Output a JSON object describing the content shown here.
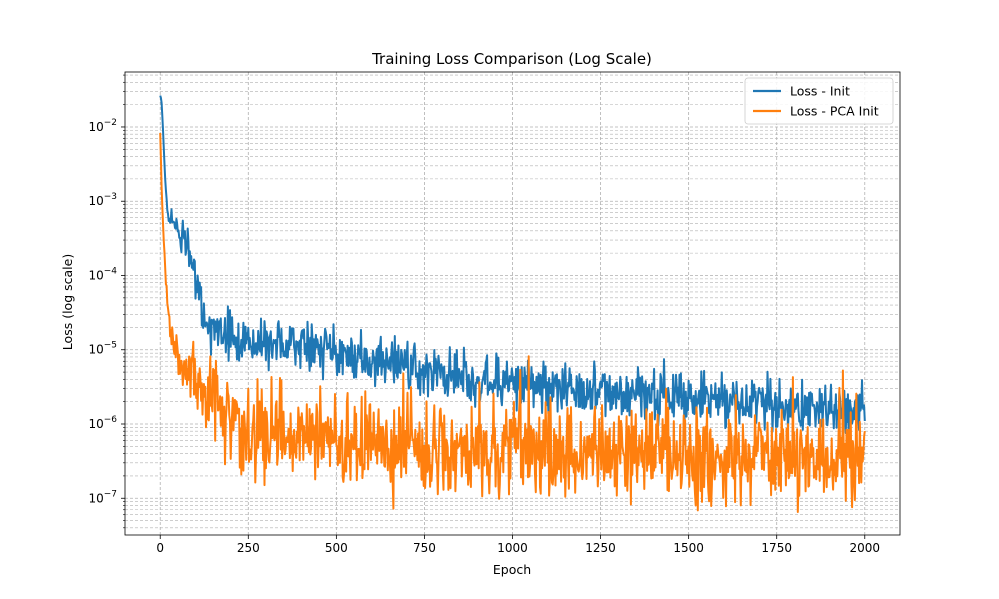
{
  "chart_data": {
    "type": "line",
    "title": "Training Loss Comparison (Log Scale)",
    "xlabel": "Epoch",
    "ylabel": "Loss (log scale)",
    "xlim": [
      -100,
      2100
    ],
    "ylim": [
      3.2e-08,
      0.055
    ],
    "yscale": "log",
    "x_ticks": [
      0,
      250,
      500,
      750,
      1000,
      1250,
      1500,
      1750,
      2000
    ],
    "y_ticks": [
      {
        "value": 1e-07,
        "base": "10",
        "exp": "−7"
      },
      {
        "value": 1e-06,
        "base": "10",
        "exp": "−6"
      },
      {
        "value": 1e-05,
        "base": "10",
        "exp": "−5"
      },
      {
        "value": 0.0001,
        "base": "10",
        "exp": "−4"
      },
      {
        "value": 0.001,
        "base": "10",
        "exp": "−3"
      },
      {
        "value": 0.01,
        "base": "10",
        "exp": "−2"
      }
    ],
    "grid": true,
    "legend_position": "top-right",
    "series": [
      {
        "name": "Loss - Init",
        "color": "#1f77b4",
        "x": [
          0,
          5,
          10,
          15,
          20,
          30,
          40,
          50,
          60,
          75,
          90,
          100,
          110,
          125,
          150,
          200,
          250,
          300,
          400,
          500,
          600,
          700,
          800,
          900,
          1000,
          1100,
          1200,
          1300,
          1400,
          1500,
          1600,
          1700,
          1800,
          1900,
          2000
        ],
        "y": [
          0.028,
          0.02,
          0.005,
          0.0015,
          0.0007,
          0.00055,
          0.0005,
          0.00045,
          0.0003,
          0.00025,
          0.00015,
          0.0001,
          6e-05,
          2.5e-05,
          1.8e-05,
          1.4e-05,
          1.3e-05,
          1.2e-05,
          1.1e-05,
          9e-06,
          7e-06,
          5.5e-06,
          4.5e-06,
          4e-06,
          3.5e-06,
          3.2e-06,
          2.8e-06,
          2.6e-06,
          2.4e-06,
          2.2e-06,
          2e-06,
          1.9e-06,
          1.8e-06,
          1.6e-06,
          1.5e-06
        ]
      },
      {
        "name": "Loss - PCA Init",
        "color": "#ff7f0e",
        "x": [
          0,
          5,
          10,
          15,
          20,
          25,
          30,
          40,
          50,
          60,
          75,
          100,
          125,
          150,
          200,
          250,
          300,
          400,
          500,
          600,
          700,
          800,
          900,
          1000,
          1100,
          1200,
          1300,
          1400,
          1500,
          1600,
          1700,
          1800,
          1900,
          2000
        ],
        "y": [
          0.0075,
          0.0012,
          0.0003,
          0.0001,
          4e-05,
          2.5e-05,
          1.5e-05,
          1.1e-05,
          9e-06,
          7e-06,
          5.5e-06,
          4.5e-06,
          3e-06,
          2e-06,
          1e-06,
          8e-07,
          7e-07,
          6.5e-07,
          6e-07,
          5.5e-07,
          5e-07,
          4.8e-07,
          4.5e-07,
          4.3e-07,
          4.2e-07,
          4e-07,
          4e-07,
          3.9e-07,
          3.8e-07,
          3.8e-07,
          3.7e-07,
          3.6e-07,
          3.5e-07,
          3.5e-07
        ]
      }
    ]
  }
}
